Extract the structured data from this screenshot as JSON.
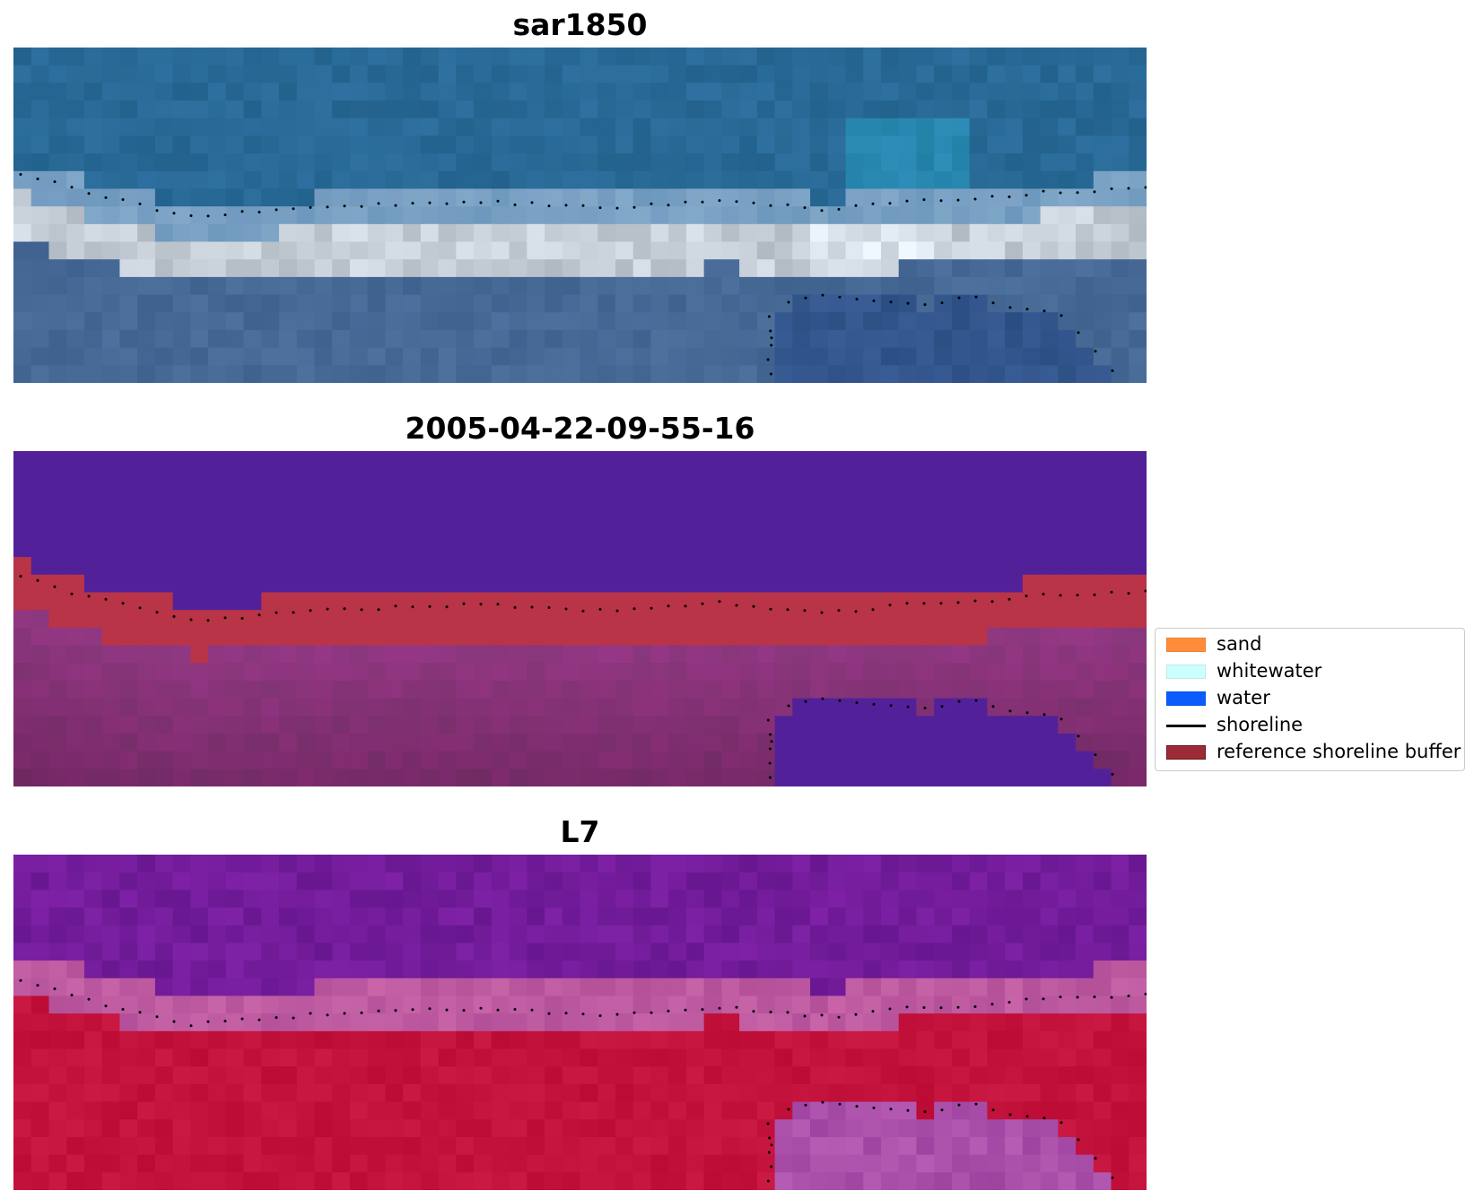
{
  "panels": [
    {
      "title": "sar1850",
      "scheme": "rgb"
    },
    {
      "title": "2005-04-22-09-55-16",
      "scheme": "classified"
    },
    {
      "title": "L7",
      "scheme": "ndwi"
    }
  ],
  "legend": {
    "items": [
      {
        "label": "sand",
        "color": "#ff8c3a",
        "type": "patch"
      },
      {
        "label": "whitewater",
        "color": "#ccffff",
        "type": "patch"
      },
      {
        "label": "water",
        "color": "#0a5cff",
        "type": "patch"
      },
      {
        "label": "shoreline",
        "color": "#000000",
        "type": "line"
      },
      {
        "label": "reference shoreline buffer",
        "color": "#9b2c37",
        "type": "patch"
      }
    ]
  },
  "colors": {
    "ocean": "#2b6ea3",
    "breaker": "#e8eef5",
    "classified_water": "#52219a",
    "classified_buffer": "#b93447",
    "classified_land": "#742a64",
    "ndwi_water": "#7a1e9e",
    "ndwi_land": "#c20a39"
  }
}
